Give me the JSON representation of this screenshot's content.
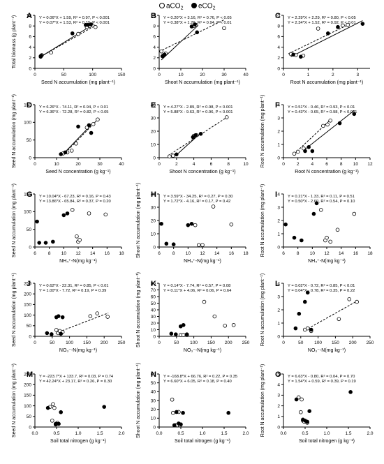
{
  "legend": {
    "ambient": "aCO",
    "ambient_sub": "2",
    "elevated": "eCO",
    "elevated_sub": "2"
  },
  "chart_data": [
    {
      "id": "A",
      "type": "scatter",
      "xlabel": "Seed N accumulation (mg plant⁻¹)",
      "ylabel": "Total biomass (g plant⁻¹)",
      "xlim": [
        0,
        150
      ],
      "ylim": [
        0,
        10
      ],
      "xticks": [
        0,
        50,
        100,
        150
      ],
      "yticks": [
        0,
        2,
        4,
        6,
        8,
        10
      ],
      "eq_a": "Y = 0.06*X + 1.59, R² = 0.97, P < 0.001",
      "eq_e": "Y = 0.07*X + 1.53, R² = 0.10, P < 0.001",
      "aco2": [
        [
          10,
          2.3
        ],
        [
          12,
          2.5
        ],
        [
          28,
          3.0
        ],
        [
          75,
          6.5
        ],
        [
          90,
          7.8
        ],
        [
          95,
          8.0
        ],
        [
          100,
          8.1
        ],
        [
          105,
          7.8
        ]
      ],
      "eco2": [
        [
          10,
          2.2
        ],
        [
          11,
          2.4
        ],
        [
          65,
          6.6
        ],
        [
          88,
          8.2
        ],
        [
          92,
          8.2
        ],
        [
          97,
          8.3
        ]
      ],
      "fit_a": [
        [
          10,
          2.2
        ],
        [
          105,
          8.1
        ]
      ],
      "fit_e": [
        [
          10,
          2.2
        ],
        [
          100,
          8.2
        ]
      ]
    },
    {
      "id": "B",
      "type": "scatter",
      "xlabel": "Shoot N accumulation (mg plant⁻¹)",
      "ylabel": "",
      "xlim": [
        0,
        40
      ],
      "ylim": [
        0,
        10
      ],
      "xticks": [
        0,
        10,
        20,
        30,
        40
      ],
      "yticks": [
        0,
        2,
        4,
        6,
        8,
        10
      ],
      "eq_a": "Y = 0.20*X + 3.16, R² = 0.76, P < 0.05",
      "eq_e": "Y = 0.38*X + 1.26, R² = 0.94, P < 0.01",
      "aco2": [
        [
          1,
          3.2
        ],
        [
          2,
          2.5
        ],
        [
          3,
          2.8
        ],
        [
          16,
          8.0
        ],
        [
          17,
          8.2
        ],
        [
          30,
          7.6
        ]
      ],
      "eco2": [
        [
          1.5,
          2.3
        ],
        [
          2.5,
          2.6
        ],
        [
          15,
          7.9
        ],
        [
          16.5,
          8.3
        ],
        [
          17.5,
          6.8
        ]
      ],
      "fit_a": [
        [
          0,
          3.16
        ],
        [
          30,
          9.16
        ]
      ],
      "fit_e": [
        [
          1,
          1.6
        ],
        [
          18,
          8.1
        ]
      ]
    },
    {
      "id": "C",
      "type": "scatter",
      "xlabel": "Root N accumulation (mg plant⁻¹)",
      "ylabel": "",
      "xlim": [
        0,
        3.5
      ],
      "ylim": [
        0,
        10
      ],
      "xticks": [
        0,
        1,
        2,
        3
      ],
      "yticks": [
        0,
        2,
        4,
        6,
        8,
        10
      ],
      "eq_a": "Y = 2.29*X + 2.29, R² = 0.80, P < 0.05",
      "eq_e": "Y = 2.34*X + 1.52, R² = 0.92, P < 0.01",
      "aco2": [
        [
          0.3,
          2.7
        ],
        [
          0.5,
          2.5
        ],
        [
          0.8,
          2.4
        ],
        [
          1.4,
          7.5
        ],
        [
          2.4,
          8.1
        ],
        [
          2.6,
          8.2
        ]
      ],
      "eco2": [
        [
          0.4,
          2.6
        ],
        [
          0.7,
          2.2
        ],
        [
          1.8,
          6.6
        ],
        [
          2.2,
          7.8
        ],
        [
          3.2,
          8.4
        ]
      ],
      "fit_a": [
        [
          0.2,
          2.75
        ],
        [
          2.6,
          8.2
        ]
      ],
      "fit_e": [
        [
          0.3,
          2.2
        ],
        [
          3.2,
          9.0
        ]
      ]
    },
    {
      "id": "D",
      "type": "scatter",
      "xlabel": "Seed N concentration (g kg⁻¹)",
      "ylabel": "Seed N accumulation (mg plant⁻¹)",
      "xlim": [
        0,
        40
      ],
      "ylim": [
        0,
        150
      ],
      "xticks": [
        0,
        10,
        20,
        30,
        40
      ],
      "yticks": [
        0,
        50,
        100,
        150
      ],
      "eq_a": "Y = 6.26*X - 74.11, R² = 0.94, P < 0.01",
      "eq_e": "Y = 6.36*X - 72.28, R² = 0.82, P < 0.05",
      "aco2": [
        [
          13,
          12
        ],
        [
          15,
          15
        ],
        [
          17,
          20
        ],
        [
          19,
          40
        ],
        [
          24,
          85
        ],
        [
          27,
          95
        ],
        [
          29,
          108
        ]
      ],
      "eco2": [
        [
          12,
          10
        ],
        [
          14,
          15
        ],
        [
          20,
          88
        ],
        [
          25,
          92
        ],
        [
          26,
          70
        ]
      ],
      "fit_a": [
        [
          13,
          7
        ],
        [
          29,
          108
        ]
      ],
      "fit_e": [
        [
          13,
          10
        ],
        [
          26,
          93
        ]
      ]
    },
    {
      "id": "E",
      "type": "scatter",
      "xlabel": "Shoot N concentration (g kg⁻¹)",
      "ylabel": "",
      "xlim": [
        0,
        10
      ],
      "ylim": [
        0,
        40
      ],
      "xticks": [
        0,
        2,
        4,
        6,
        8,
        10
      ],
      "yticks": [
        0,
        10,
        20,
        30,
        40
      ],
      "eq_a": "Y = 4.27*X - 2.89, R² = 0.98, P < 0.001",
      "eq_e": "Y = 5.88*X - 9.63, R² = 0.96, P < 0.001",
      "aco2": [
        [
          1.2,
          1.0
        ],
        [
          1.6,
          1.5
        ],
        [
          4.0,
          16.5
        ],
        [
          4.3,
          17.0
        ],
        [
          7.8,
          30.5
        ]
      ],
      "eco2": [
        [
          2.0,
          2.5
        ],
        [
          3.9,
          15.5
        ],
        [
          4.2,
          17.0
        ],
        [
          4.8,
          18.0
        ]
      ],
      "fit_a": [
        [
          1.0,
          1.4
        ],
        [
          7.9,
          30.8
        ]
      ],
      "fit_e": [
        [
          2.0,
          2.1
        ],
        [
          4.9,
          19.2
        ]
      ]
    },
    {
      "id": "F",
      "type": "scatter",
      "xlabel": "Root N concentration (g kg⁻¹)",
      "ylabel": "Root N accumulation (mg plant⁻¹)",
      "xlim": [
        0,
        12
      ],
      "ylim": [
        0,
        4
      ],
      "xticks": [
        0,
        2,
        4,
        6,
        8,
        10,
        12
      ],
      "yticks": [
        0,
        1,
        2,
        3,
        4
      ],
      "eq_a": "Y = 0.51*X - 0.46, R² = 0.93, P < 0.01",
      "eq_e": "Y = 0.43*X - 0.65, R² = 0.98, P < 0.001",
      "aco2": [
        [
          1.5,
          0.3
        ],
        [
          2.0,
          0.45
        ],
        [
          2.8,
          0.7
        ],
        [
          5.5,
          2.4
        ],
        [
          6.1,
          2.5
        ],
        [
          6.5,
          2.8
        ]
      ],
      "eco2": [
        [
          3.0,
          0.5
        ],
        [
          3.5,
          0.8
        ],
        [
          4.0,
          0.5
        ],
        [
          7.8,
          2.6
        ],
        [
          9.8,
          3.3
        ]
      ],
      "fit_a": [
        [
          1.5,
          0.3
        ],
        [
          6.5,
          2.85
        ]
      ],
      "fit_e": [
        [
          3.0,
          0.64
        ],
        [
          9.8,
          3.56
        ]
      ]
    },
    {
      "id": "G",
      "type": "scatter",
      "xlabel": "NH₄⁺-N(mg kg⁻¹)",
      "ylabel": "Seed N accumulation (mg plant⁻¹)",
      "xlim": [
        6,
        18
      ],
      "ylim": [
        0,
        150
      ],
      "xticks": [
        6,
        8,
        10,
        12,
        14,
        16,
        18
      ],
      "yticks": [
        0,
        50,
        100,
        150
      ],
      "eq_a": "Y = 10.04*X - 67.23, R² = 0.16, P = 0.43",
      "eq_e": "Y = 13.86*X - 65.84, R² = 0.37, P = 0.20",
      "aco2": [
        [
          11.2,
          105
        ],
        [
          11.8,
          30
        ],
        [
          12.0,
          15
        ],
        [
          12.2,
          20
        ],
        [
          13.5,
          95
        ],
        [
          15.8,
          92
        ]
      ],
      "eco2": [
        [
          6.3,
          72
        ],
        [
          6.6,
          12
        ],
        [
          7.5,
          12
        ],
        [
          8.5,
          15
        ],
        [
          10.0,
          90
        ],
        [
          10.5,
          95
        ]
      ],
      "fit_a": [],
      "fit_e": []
    },
    {
      "id": "H",
      "type": "scatter",
      "xlabel": "NH₄⁺-N(mg kg⁻¹)",
      "ylabel": "Shoot N accumulation (mg plant⁻¹)",
      "xlim": [
        6,
        18
      ],
      "ylim": [
        0,
        40
      ],
      "xticks": [
        6,
        8,
        10,
        12,
        14,
        16,
        18
      ],
      "yticks": [
        0,
        10,
        20,
        30,
        40
      ],
      "eq_a": "Y = 3.59*X - 34.25, R² = 0.27, P = 0.30",
      "eq_e": "Y = 1.72*X - 4.16, R² = 0.17, P = 0.42",
      "aco2": [
        [
          11.0,
          16.5
        ],
        [
          11.5,
          1.5
        ],
        [
          12.0,
          1.5
        ],
        [
          13.5,
          30.5
        ],
        [
          16.0,
          17
        ]
      ],
      "eco2": [
        [
          6.3,
          17.5
        ],
        [
          7.0,
          2.5
        ],
        [
          8.0,
          2.0
        ],
        [
          10.0,
          16.5
        ],
        [
          10.5,
          17.5
        ]
      ],
      "fit_a": [],
      "fit_e": []
    },
    {
      "id": "I",
      "type": "scatter",
      "xlabel": "NH₄⁺-N(mg kg⁻¹)",
      "ylabel": "Root N accumulation (mg plant⁻¹)",
      "xlim": [
        6,
        18
      ],
      "ylim": [
        0,
        4
      ],
      "xticks": [
        6,
        8,
        10,
        12,
        14,
        16,
        18
      ],
      "yticks": [
        0,
        1,
        2,
        3,
        4
      ],
      "eq_a": "Y = 0.21*X - 1.33, R² = 0.11, P = 0.51",
      "eq_e": "Y = 0.50*X - 2.60, R² = 0.54, P = 0.10",
      "aco2": [
        [
          11.2,
          2.8
        ],
        [
          11.8,
          0.5
        ],
        [
          12.0,
          0.7
        ],
        [
          12.5,
          0.4
        ],
        [
          13.5,
          1.3
        ],
        [
          15.8,
          2.5
        ]
      ],
      "eco2": [
        [
          6.3,
          1.7
        ],
        [
          7.5,
          0.7
        ],
        [
          8.5,
          0.5
        ],
        [
          10.2,
          2.5
        ],
        [
          10.6,
          3.3
        ]
      ],
      "fit_a": [],
      "fit_e": []
    },
    {
      "id": "J",
      "type": "scatter",
      "xlabel": "NO₃⁻-N(mg kg⁻¹)",
      "ylabel": "Seed N accumulation (mg plant⁻¹)",
      "xlim": [
        0,
        250
      ],
      "ylim": [
        0,
        250
      ],
      "xticks": [
        0,
        50,
        100,
        150,
        200,
        250
      ],
      "yticks": [
        0,
        50,
        100,
        150,
        200,
        250
      ],
      "eq_a": "Y = 0.62*X - 22.31, R² = 0.85, P < 0.01",
      "eq_e": "Y = 1.00*X - 7.72, R² = 0.19, P = 0.39",
      "aco2": [
        [
          62,
          30
        ],
        [
          67,
          15
        ],
        [
          72,
          25
        ],
        [
          80,
          20
        ],
        [
          160,
          95
        ],
        [
          180,
          108
        ],
        [
          210,
          92
        ]
      ],
      "eco2": [
        [
          35,
          15
        ],
        [
          48,
          10
        ],
        [
          62,
          90
        ],
        [
          68,
          95
        ],
        [
          75,
          12
        ],
        [
          80,
          90
        ]
      ],
      "fit_a": [
        [
          60,
          15
        ],
        [
          212,
          110
        ]
      ],
      "fit_e": []
    },
    {
      "id": "K",
      "type": "scatter",
      "xlabel": "NO₃⁻-N(mg kg⁻¹)",
      "ylabel": "Shoot N accumulation (mg plant⁻¹)",
      "xlim": [
        0,
        250
      ],
      "ylim": [
        0,
        80
      ],
      "xticks": [
        0,
        50,
        100,
        150,
        200,
        250
      ],
      "yticks": [
        0,
        10,
        20,
        30,
        40,
        50,
        60,
        70,
        80
      ],
      "eq_a": "Y = 0.14*X - 7.74, R² = 0.57, P = 0.08",
      "eq_e": "Y = 0.11*X + 4.06, R² = 0.06, P = 0.64",
      "aco2": [
        [
          62,
          2
        ],
        [
          70,
          2
        ],
        [
          80,
          2
        ],
        [
          130,
          52
        ],
        [
          160,
          30
        ],
        [
          190,
          16
        ],
        [
          215,
          17
        ]
      ],
      "eco2": [
        [
          35,
          4
        ],
        [
          48,
          3
        ],
        [
          62,
          15
        ],
        [
          70,
          17
        ],
        [
          80,
          3
        ]
      ],
      "fit_a": [],
      "fit_e": []
    },
    {
      "id": "L",
      "type": "scatter",
      "xlabel": "NO₃⁻-N(mg kg⁻¹)",
      "ylabel": "Root N accumulation (mg plant⁻¹)",
      "xlim": [
        0,
        250
      ],
      "ylim": [
        0,
        4
      ],
      "xticks": [
        0,
        50,
        100,
        150,
        200,
        250
      ],
      "yticks": [
        0,
        1,
        2,
        3,
        4
      ],
      "eq_a": "Y = 0.02*X - 0.72, R² = 0.85, P < 0.01",
      "eq_e": "Y = 0.04*X - 0.78, R² = 0.35, P = 0.22",
      "aco2": [
        [
          62,
          0.5
        ],
        [
          70,
          0.6
        ],
        [
          80,
          0.4
        ],
        [
          160,
          1.3
        ],
        [
          190,
          2.8
        ],
        [
          212,
          2.6
        ]
      ],
      "eco2": [
        [
          35,
          0.6
        ],
        [
          45,
          1.7
        ],
        [
          62,
          2.6
        ],
        [
          70,
          3.3
        ],
        [
          80,
          0.5
        ]
      ],
      "fit_a": [
        [
          62,
          0.45
        ],
        [
          212,
          2.65
        ]
      ],
      "fit_e": []
    },
    {
      "id": "M",
      "type": "scatter",
      "xlabel": "Soil total nitrogen (g kg⁻¹)",
      "ylabel": "Seed N accumulation (mg plant⁻¹)",
      "xlim": [
        0,
        2.0
      ],
      "ylim": [
        0,
        250
      ],
      "xticks": [
        0.0,
        0.5,
        1.0,
        1.5,
        2.0
      ],
      "yticks": [
        0,
        50,
        100,
        150,
        200,
        250
      ],
      "eq_a": "Y = -223.7*X + 133.7, R² = 0.03, P = 0.74",
      "eq_e": "Y = 42.24*X + 23.17, R² = 0.26, P = 0.30",
      "aco2": [
        [
          0.35,
          95
        ],
        [
          0.4,
          30
        ],
        [
          0.42,
          108
        ],
        [
          0.45,
          90
        ],
        [
          0.48,
          15
        ],
        [
          0.52,
          20
        ]
      ],
      "eco2": [
        [
          0.3,
          90
        ],
        [
          0.48,
          12
        ],
        [
          0.5,
          15
        ],
        [
          0.55,
          15
        ],
        [
          0.6,
          70
        ],
        [
          1.6,
          95
        ]
      ],
      "fit_a": [],
      "fit_e": []
    },
    {
      "id": "N",
      "type": "scatter",
      "xlabel": "Soil total nitrogen (g kg⁻¹)",
      "ylabel": "Shoot N accumulation (mg plant⁻¹)",
      "xlim": [
        0,
        2.0
      ],
      "ylim": [
        0,
        60
      ],
      "xticks": [
        0.0,
        0.5,
        1.0,
        1.5,
        2.0
      ],
      "yticks": [
        0,
        10,
        20,
        30,
        40,
        50,
        60
      ],
      "eq_a": "Y = -168.8*X + 66.76, R² = 0.22, P = 0.35",
      "eq_e": "Y = 6.60*X + 6.05, R² = 0.18, P = 0.40",
      "aco2": [
        [
          0.3,
          31
        ],
        [
          0.32,
          16
        ],
        [
          0.38,
          2
        ],
        [
          0.42,
          2
        ],
        [
          0.45,
          17
        ],
        [
          0.48,
          2
        ]
      ],
      "eco2": [
        [
          0.35,
          2
        ],
        [
          0.4,
          17
        ],
        [
          0.45,
          4
        ],
        [
          0.5,
          3
        ],
        [
          0.55,
          16
        ],
        [
          1.6,
          16
        ]
      ],
      "fit_a": [],
      "fit_e": []
    },
    {
      "id": "O",
      "type": "scatter",
      "xlabel": "Soil total nitrogen (g kg⁻¹)",
      "ylabel": "Root N accumulation (mg plant⁻¹)",
      "xlim": [
        0,
        2.0
      ],
      "ylim": [
        0,
        5
      ],
      "xticks": [
        0.0,
        0.5,
        1.0,
        1.5,
        2.0
      ],
      "yticks": [
        0,
        1,
        2,
        3,
        4,
        5
      ],
      "eq_a": "Y = 6.63*X - 0.80, R² = 0.04, P = 0.70",
      "eq_e": "Y = 1.54*X + 0.59, R² = 0.39, P = 0.19",
      "aco2": [
        [
          0.35,
          2.8
        ],
        [
          0.4,
          1.4
        ],
        [
          0.42,
          2.6
        ],
        [
          0.45,
          0.6
        ],
        [
          0.48,
          0.5
        ],
        [
          0.55,
          0.4
        ]
      ],
      "eco2": [
        [
          0.3,
          2.6
        ],
        [
          0.45,
          0.7
        ],
        [
          0.5,
          0.6
        ],
        [
          0.55,
          0.5
        ],
        [
          0.6,
          1.5
        ],
        [
          1.55,
          3.3
        ]
      ],
      "fit_a": [],
      "fit_e": []
    }
  ]
}
